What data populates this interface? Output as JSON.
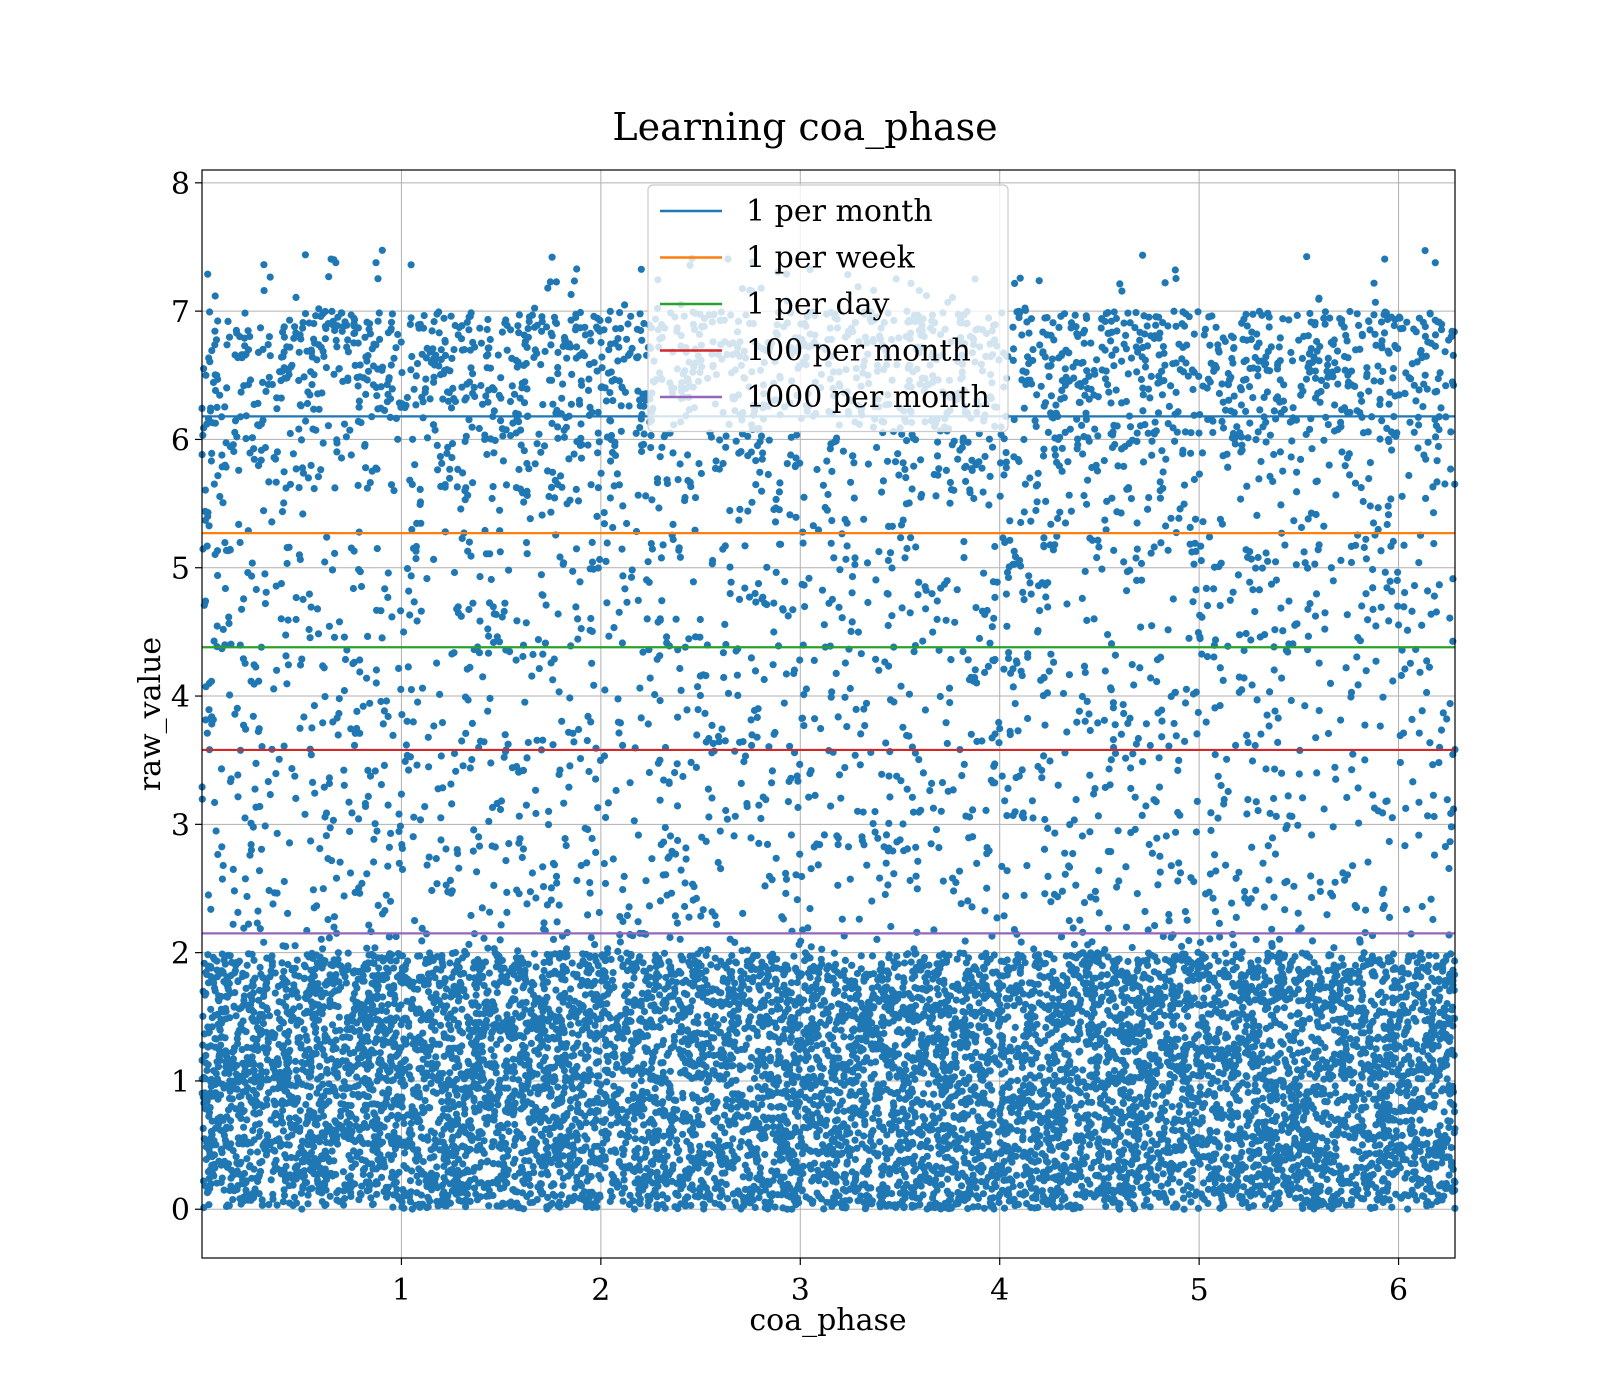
{
  "chart_data": {
    "type": "scatter",
    "title": "Learning coa_phase",
    "xlabel": "coa_phase",
    "ylabel": "raw_value",
    "xlim": [
      0,
      6.283
    ],
    "ylim": [
      -0.38,
      8.1
    ],
    "xticks": [
      1,
      2,
      3,
      4,
      5,
      6
    ],
    "yticks": [
      0,
      1,
      2,
      3,
      4,
      5,
      6,
      7,
      8
    ],
    "grid": true,
    "legend_position": "top-center",
    "scatter_color": "#1f77b4",
    "scatter_distribution": {
      "x_range": [
        0,
        6.283
      ],
      "dense_band_y_range": [
        0,
        2.0
      ],
      "sparse_region_y_range": [
        2.0,
        7.5
      ],
      "upper_band_y_range": [
        5.0,
        7.0
      ],
      "max_y": 7.48
    },
    "hlines": [
      {
        "name": "1 per month",
        "y": 6.18,
        "color": "#1f77b4"
      },
      {
        "name": "1 per week",
        "y": 5.27,
        "color": "#ff7f0e"
      },
      {
        "name": "1 per day",
        "y": 4.38,
        "color": "#2ca02c"
      },
      {
        "name": "100 per month",
        "y": 3.58,
        "color": "#d62728"
      },
      {
        "name": "1000 per month",
        "y": 2.15,
        "color": "#9467bd"
      }
    ]
  }
}
